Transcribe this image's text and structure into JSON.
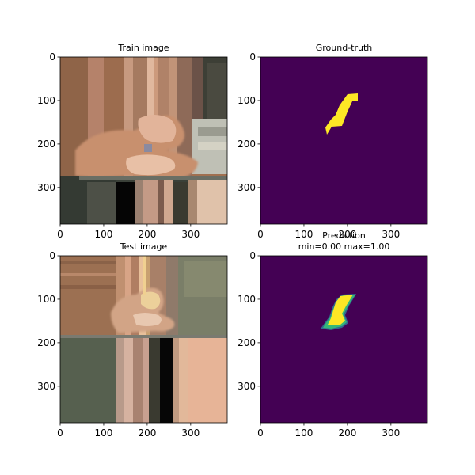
{
  "figure": {
    "background": "#ffffff",
    "panels": [
      {
        "id": "train",
        "title": "Train image",
        "kind": "image",
        "extent": [
          0,
          384,
          384,
          0
        ],
        "xticks": [
          0,
          100,
          200,
          300
        ],
        "yticks": [
          0,
          100,
          200,
          300
        ],
        "description_colors": {
          "upper_left": "#9a6a4c",
          "upper_right_panel": "#3d3f36",
          "lower_band": "#3a4038",
          "black_bar": "#050505",
          "skin": "#d8a88c"
        }
      },
      {
        "id": "gt",
        "title": "Ground-truth",
        "kind": "mask",
        "extent": [
          0,
          384,
          384,
          0
        ],
        "xticks": [
          0,
          100,
          200,
          300
        ],
        "yticks": [
          0,
          100,
          200,
          300
        ],
        "mask_colors": {
          "background": "#440154",
          "foreground": "#fde725"
        }
      },
      {
        "id": "test",
        "title": "Test image",
        "kind": "image",
        "extent": [
          0,
          384,
          384,
          0
        ],
        "xticks": [
          0,
          100,
          200,
          300
        ],
        "yticks": [
          0,
          100,
          200,
          300
        ]
      },
      {
        "id": "pred",
        "title": "Prediction",
        "subtitle": "min=0.00 max=1.00",
        "kind": "mask",
        "extent": [
          0,
          384,
          384,
          0
        ],
        "xticks": [
          0,
          100,
          200,
          300
        ],
        "yticks": [
          0,
          100,
          200,
          300
        ],
        "mask_colors": {
          "background": "#440154",
          "foreground": "#fde725",
          "edge": "#35b779",
          "edge2": "#31688e"
        }
      }
    ]
  },
  "chart_data": [
    {
      "type": "heatmap",
      "title": "Train image",
      "xlim": [
        0,
        384
      ],
      "ylim": [
        384,
        0
      ],
      "xticks": [
        0,
        100,
        200,
        300
      ],
      "yticks": [
        0,
        100,
        200,
        300
      ]
    },
    {
      "type": "heatmap",
      "title": "Ground-truth",
      "xlim": [
        0,
        384
      ],
      "ylim": [
        384,
        0
      ],
      "xticks": [
        0,
        100,
        200,
        300
      ],
      "yticks": [
        0,
        100,
        200,
        300
      ],
      "mask_region_approx": [
        [
          200,
          85
        ],
        [
          225,
          85
        ],
        [
          225,
          100
        ],
        [
          213,
          103
        ],
        [
          205,
          130
        ],
        [
          195,
          160
        ],
        [
          165,
          160
        ],
        [
          155,
          175
        ],
        [
          150,
          160
        ],
        [
          163,
          145
        ],
        [
          180,
          130
        ],
        [
          190,
          110
        ]
      ]
    },
    {
      "type": "heatmap",
      "title": "Test image",
      "xlim": [
        0,
        384
      ],
      "ylim": [
        384,
        0
      ],
      "xticks": [
        0,
        100,
        200,
        300
      ],
      "yticks": [
        0,
        100,
        200,
        300
      ]
    },
    {
      "type": "heatmap",
      "title": "Prediction",
      "subtitle": "min=0.00 max=1.00",
      "value_range": [
        0.0,
        1.0
      ],
      "xlim": [
        0,
        384
      ],
      "ylim": [
        384,
        0
      ],
      "xticks": [
        0,
        100,
        200,
        300
      ],
      "yticks": [
        0,
        100,
        200,
        300
      ],
      "mask_region_approx": [
        [
          218,
          90
        ],
        [
          190,
          95
        ],
        [
          178,
          110
        ],
        [
          170,
          130
        ],
        [
          160,
          150
        ],
        [
          145,
          165
        ],
        [
          160,
          168
        ],
        [
          185,
          165
        ],
        [
          195,
          155
        ],
        [
          190,
          140
        ],
        [
          200,
          120
        ],
        [
          212,
          100
        ]
      ]
    }
  ]
}
